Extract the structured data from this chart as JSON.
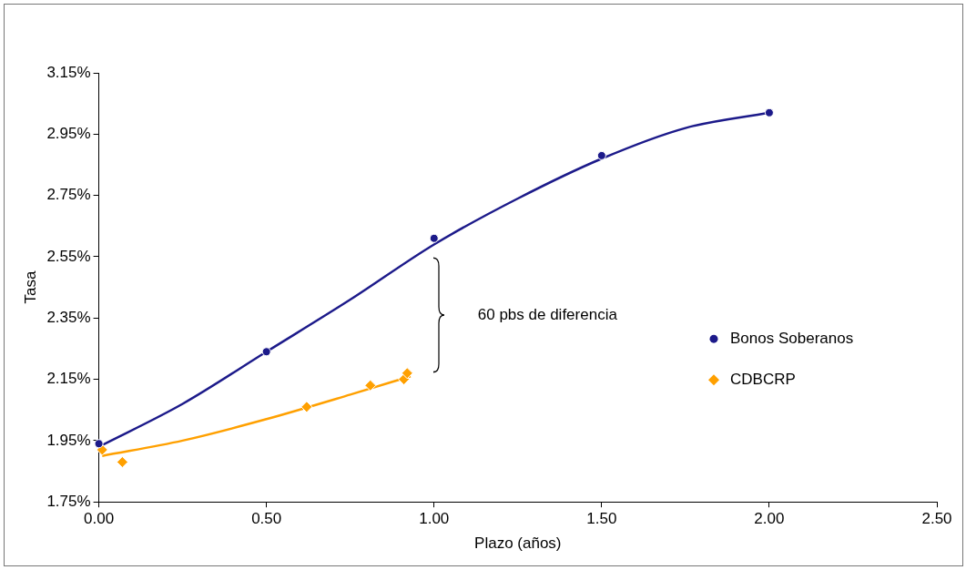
{
  "chart_data": {
    "type": "scatter",
    "xlabel": "Plazo (años)",
    "ylabel": "Tasa",
    "legend": "right",
    "grid": false,
    "xlim": [
      0,
      2.5
    ],
    "xticks": [
      {
        "value": 0,
        "label": "0.00"
      },
      {
        "value": 0.5,
        "label": "0.50"
      },
      {
        "value": 1,
        "label": "1.00"
      },
      {
        "value": 1.5,
        "label": "1.50"
      },
      {
        "value": 2,
        "label": "2.00"
      },
      {
        "value": 2.5,
        "label": "2.50"
      }
    ],
    "ylim": [
      1.75,
      3.15
    ],
    "yticks": [
      {
        "value": 1.75,
        "label": "1.75%"
      },
      {
        "value": 1.95,
        "label": "1.95%"
      },
      {
        "value": 2.15,
        "label": "2.15%"
      },
      {
        "value": 2.35,
        "label": "2.35%"
      },
      {
        "value": 2.55,
        "label": "2.55%"
      },
      {
        "value": 2.75,
        "label": "2.75%"
      },
      {
        "value": 2.95,
        "label": "2.95%"
      },
      {
        "value": 3.15,
        "label": "3.15%"
      }
    ],
    "annotations": [
      "60 pbs de diferencia"
    ],
    "series": [
      {
        "name": "Bonos Soberanos",
        "type": "scatter",
        "marker": "circle",
        "color": "#1c1a8a",
        "x": [
          0,
          0.5,
          1,
          1.5,
          2
        ],
        "values": [
          1.94,
          2.24,
          2.61,
          2.88,
          3.02
        ]
      },
      {
        "name": "CDBCRP",
        "type": "scatter",
        "marker": "diamond",
        "color": "#ffa000",
        "x": [
          0.01,
          0.07,
          0.62,
          0.81,
          0.91,
          0.92
        ],
        "values": [
          1.92,
          1.88,
          2.06,
          2.13,
          2.15,
          2.17
        ]
      },
      {
        "type": "line",
        "color": "#1c1a8a",
        "x": [
          0,
          0.25,
          0.5,
          0.75,
          1,
          1.25,
          1.5,
          1.75,
          2
        ],
        "values": [
          1.93,
          2.07,
          2.24,
          2.41,
          2.59,
          2.74,
          2.87,
          2.97,
          3.02
        ]
      },
      {
        "type": "line",
        "color": "#ffa000",
        "x": [
          0.01,
          0.25,
          0.5,
          0.75,
          0.93
        ],
        "values": [
          1.9,
          1.95,
          2.02,
          2.1,
          2.16
        ]
      }
    ]
  }
}
